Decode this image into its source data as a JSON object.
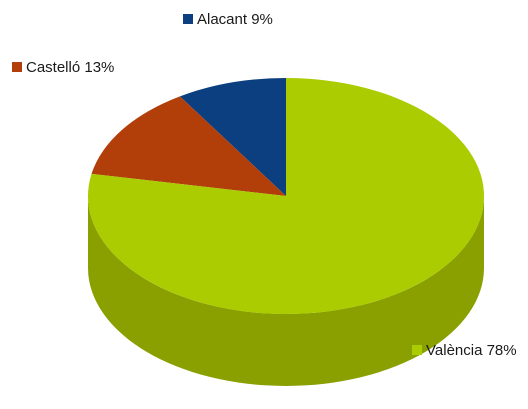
{
  "chart_data": {
    "type": "pie",
    "style": "3d",
    "categories": [
      "Alacant",
      "Castelló",
      "València"
    ],
    "values": [
      9,
      13,
      78
    ],
    "unit": "%",
    "labels": [
      "Alacant 9%",
      "Castelló 13%",
      "València 78%"
    ],
    "colors": [
      "#0b3f7f",
      "#b23f0a",
      "#aacc00"
    ],
    "side_colors": [
      "#062a56",
      "#7b2a06",
      "#8aa000"
    ],
    "title": "",
    "legend": "labels-beside-slices"
  }
}
